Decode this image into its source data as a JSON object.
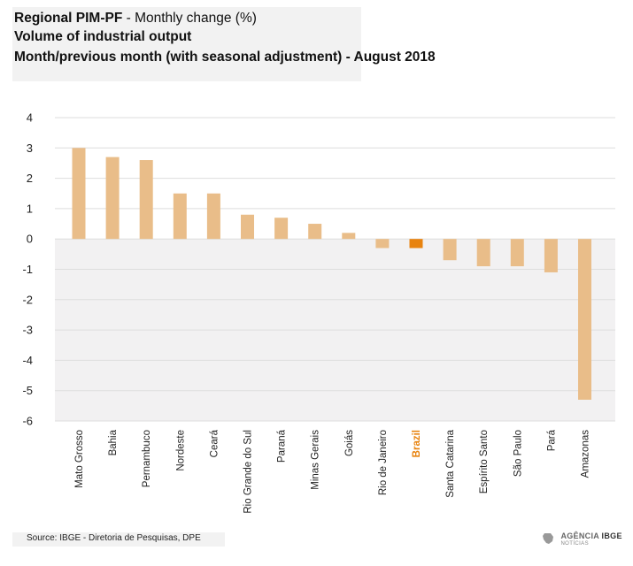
{
  "header": {
    "title_bold": "Regional PIM-PF",
    "title_rest": " - Monthly change (%)",
    "line2": "Volume of industrial output",
    "line3": "Month/previous month (with seasonal adjustment) - August 2018"
  },
  "footer": {
    "source": "Source: IBGE - Diretoria de Pesquisas, DPE",
    "logo_main": "AGÊNCIA",
    "logo_brand": "IBGE",
    "logo_sub": "NOTÍCIAS"
  },
  "colors": {
    "bar": "#e9bd89",
    "highlight": "#e8830f",
    "negative_area": "#f2f1f2",
    "grid": "#dddddd"
  },
  "chart_data": {
    "type": "bar",
    "title": "Regional PIM-PF - Monthly change (%)",
    "categories": [
      "Mato Grosso",
      "Bahia",
      "Pernambuco",
      "Nordeste",
      "Ceará",
      "Rio Grande do Sul",
      "Paraná",
      "Minas Gerais",
      "Goiás",
      "Rio de Janeiro",
      "Brazil",
      "Santa Catarina",
      "Espírito Santo",
      "São Paulo",
      "Pará",
      "Amazonas"
    ],
    "values": [
      3.0,
      2.7,
      2.6,
      1.5,
      1.5,
      0.8,
      0.7,
      0.5,
      0.2,
      -0.3,
      -0.3,
      -0.7,
      -0.9,
      -0.9,
      -1.1,
      -5.3
    ],
    "highlight": "Brazil",
    "ylim": [
      -6,
      4
    ],
    "yticks": [
      4,
      3,
      2,
      1,
      0,
      -1,
      -2,
      -3,
      -4,
      -5,
      -6
    ],
    "grid": true,
    "xlabel": "",
    "ylabel": ""
  }
}
